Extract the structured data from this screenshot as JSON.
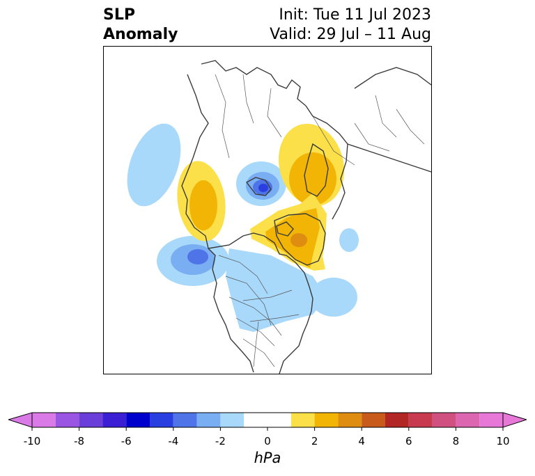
{
  "title": {
    "left_line1": "SLP",
    "left_line2": "Anomaly",
    "init": "Init: Tue 11 Jul 2023",
    "valid": "Valid: 29 Jul – 11 Aug"
  },
  "map": {
    "projection": "polar stereographic (Northern Hemisphere)",
    "features": [
      "coastlines",
      "country borders",
      "US state borders",
      "Canadian province borders"
    ],
    "anomaly_regions": [
      {
        "name": "north-pacific-low",
        "sign": "negative",
        "min_hPa": -4
      },
      {
        "name": "arctic-ocean-low",
        "sign": "negative",
        "min_hPa": -5
      },
      {
        "name": "north-central-north-america-low",
        "sign": "negative",
        "min_hPa": -1
      },
      {
        "name": "west-north-atlantic-low",
        "sign": "negative",
        "min_hPa": -1
      },
      {
        "name": "central-atlantic-low",
        "sign": "negative",
        "min_hPa": -1
      },
      {
        "name": "siberia-high",
        "sign": "positive",
        "max_hPa": 2
      },
      {
        "name": "scandinavia-high",
        "sign": "positive",
        "max_hPa": 2
      },
      {
        "name": "greenland-high",
        "sign": "positive",
        "max_hPa": 4
      }
    ]
  },
  "colorbar": {
    "units": "hPa",
    "ticks": [
      "-10",
      "-8",
      "-6",
      "-4",
      "-2",
      "0",
      "2",
      "4",
      "6",
      "8",
      "10"
    ],
    "levels": [
      -10,
      -9,
      -8,
      -7,
      -6,
      -5,
      -4,
      -3,
      -2,
      -1,
      1,
      2,
      3,
      4,
      5,
      6,
      7,
      8,
      9,
      10
    ],
    "colors": [
      "#d97ae6",
      "#9a55e3",
      "#6a3ed8",
      "#3a1fd4",
      "#0000cd",
      "#2a3fe0",
      "#4f74e8",
      "#79aef2",
      "#a8d8fa",
      "#ffffff",
      "#fbe04a",
      "#f2b405",
      "#df8d10",
      "#c85b1c",
      "#b32626",
      "#c73a4f",
      "#d05080",
      "#dd66b0",
      "#e878d8"
    ],
    "under_color": "#d97ae6",
    "over_color": "#e878d8",
    "extend": "both"
  }
}
